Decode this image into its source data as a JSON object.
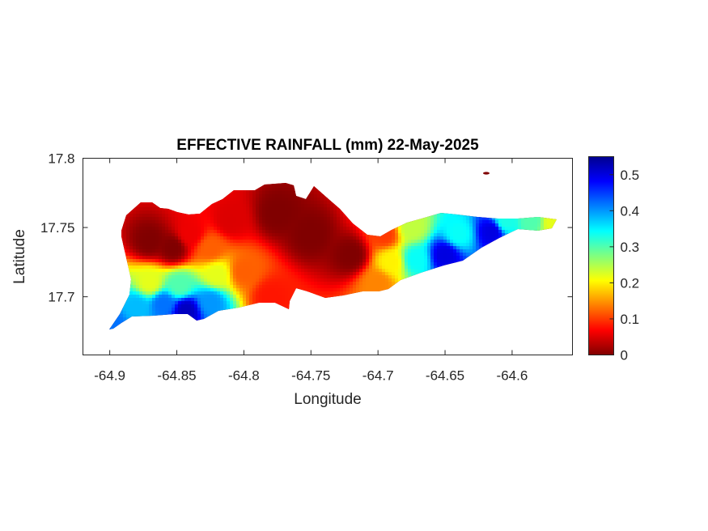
{
  "chart_data": {
    "type": "heatmap",
    "title": "EFFECTIVE RAINFALL (mm) 22-May-2025",
    "xlabel": "Longitude",
    "ylabel": "Latitude",
    "xlim": [
      -64.92,
      -64.555
    ],
    "ylim": [
      17.658,
      17.8
    ],
    "xticks": [
      -64.9,
      -64.85,
      -64.8,
      -64.75,
      -64.7,
      -64.65,
      -64.6
    ],
    "xtick_labels": [
      "-64.9",
      "-64.85",
      "-64.8",
      "-64.75",
      "-64.7",
      "-64.65",
      "-64.6"
    ],
    "yticks": [
      17.7,
      17.75,
      17.8
    ],
    "ytick_labels": [
      "17.7",
      "17.75",
      "17.8"
    ],
    "colorbar": {
      "colormap": "jet",
      "range": [
        0,
        0.55
      ],
      "ticks": [
        0,
        0.1,
        0.2,
        0.3,
        0.4,
        0.5
      ],
      "tick_labels": [
        "0",
        "0.1",
        "0.2",
        "0.3",
        "0.4",
        "0.5"
      ]
    },
    "grid": false,
    "field_samples": [
      {
        "lon": -64.898,
        "lat": 17.68,
        "value": 0.42
      },
      {
        "lon": -64.88,
        "lat": 17.693,
        "value": 0.38
      },
      {
        "lon": -64.86,
        "lat": 17.695,
        "value": 0.42
      },
      {
        "lon": -64.843,
        "lat": 17.69,
        "value": 0.52
      },
      {
        "lon": -64.825,
        "lat": 17.696,
        "value": 0.4
      },
      {
        "lon": -64.87,
        "lat": 17.71,
        "value": 0.22
      },
      {
        "lon": -64.848,
        "lat": 17.708,
        "value": 0.3
      },
      {
        "lon": -64.82,
        "lat": 17.716,
        "value": 0.22
      },
      {
        "lon": -64.87,
        "lat": 17.74,
        "value": 0.0
      },
      {
        "lon": -64.853,
        "lat": 17.735,
        "value": 0.0
      },
      {
        "lon": -64.84,
        "lat": 17.745,
        "value": 0.06
      },
      {
        "lon": -64.825,
        "lat": 17.735,
        "value": 0.12
      },
      {
        "lon": -64.8,
        "lat": 17.718,
        "value": 0.12
      },
      {
        "lon": -64.81,
        "lat": 17.755,
        "value": 0.05
      },
      {
        "lon": -64.78,
        "lat": 17.7,
        "value": 0.08
      },
      {
        "lon": -64.775,
        "lat": 17.76,
        "value": 0.0
      },
      {
        "lon": -64.75,
        "lat": 17.745,
        "value": 0.0
      },
      {
        "lon": -64.72,
        "lat": 17.73,
        "value": 0.0
      },
      {
        "lon": -64.7,
        "lat": 17.71,
        "value": 0.14
      },
      {
        "lon": -64.695,
        "lat": 17.745,
        "value": 0.1
      },
      {
        "lon": -64.69,
        "lat": 17.725,
        "value": 0.2
      },
      {
        "lon": -64.672,
        "lat": 17.727,
        "value": 0.34
      },
      {
        "lon": -64.675,
        "lat": 17.75,
        "value": 0.24
      },
      {
        "lon": -64.65,
        "lat": 17.73,
        "value": 0.5
      },
      {
        "lon": -64.64,
        "lat": 17.745,
        "value": 0.34
      },
      {
        "lon": -64.615,
        "lat": 17.747,
        "value": 0.5
      },
      {
        "lon": -64.605,
        "lat": 17.754,
        "value": 0.33
      },
      {
        "lon": -64.585,
        "lat": 17.755,
        "value": 0.3
      },
      {
        "lon": -64.57,
        "lat": 17.754,
        "value": 0.22
      }
    ]
  }
}
